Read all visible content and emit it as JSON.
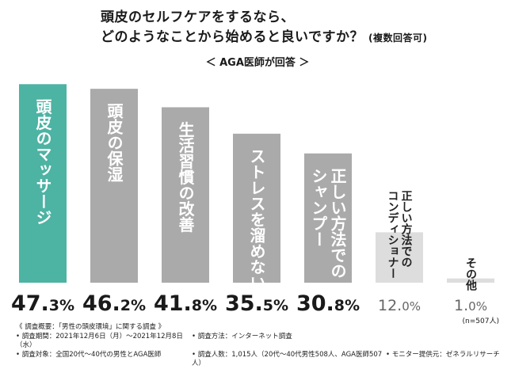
{
  "title": {
    "line1": "頭皮のセルフケアをするなら、",
    "line2": "どのようなことから始めると良いですか？",
    "note": "(複数回答可)"
  },
  "subtitle": "＜ AGA医師が回答 ＞",
  "chart_data": {
    "type": "bar",
    "categories": [
      "頭皮のマッサージ",
      "頭皮の保湿",
      "生活習慣の改善",
      "ストレスを溜めない",
      "正しい方法でのシャンプー",
      "正しい方法でのコンディショナー",
      "その他"
    ],
    "values": [
      47.3,
      46.2,
      41.8,
      35.5,
      30.8,
      12.0,
      1.0
    ],
    "value_labels": [
      {
        "int": "47.",
        "dec": "3",
        "unit": "%"
      },
      {
        "int": "46.",
        "dec": "2",
        "unit": "%"
      },
      {
        "int": "41.",
        "dec": "8",
        "unit": "%"
      },
      {
        "int": "35.",
        "dec": "5",
        "unit": "%"
      },
      {
        "int": "30.",
        "dec": "8",
        "unit": "%"
      },
      {
        "int": "12.",
        "dec": "0",
        "unit": "%"
      },
      {
        "int": "1.",
        "dec": "0",
        "unit": "%"
      }
    ],
    "bar_label_lines": [
      [
        "頭皮のマッサージ"
      ],
      [
        "頭皮の保湿"
      ],
      [
        "生活習慣の改善"
      ],
      [
        "ストレスを溜めない"
      ],
      [
        "正しい方法での",
        "シャンプー"
      ],
      [
        "正しい方法での",
        "コンディショナー"
      ],
      [
        "その他"
      ]
    ],
    "ylim": [
      0,
      50
    ],
    "colors": [
      "#4db3a3",
      "#aaaaaa",
      "#aaaaaa",
      "#aaaaaa",
      "#aaaaaa",
      "#dddddd",
      "#dddddd"
    ]
  },
  "sample_note": "(n=507人)",
  "footer": {
    "heading": "《 調査概要：「男性の頭皮環境」に関する調査 》",
    "period": "• 調査期間：2021年12月6日（月）〜2021年12月8日（水）",
    "method": "• 調査方法：インターネット調査",
    "target": "• 調査対象：全国20代〜40代の男性とAGA医師",
    "count": "• 調査人数：1,015人（20代〜40代男性508人、AGA医師507人）",
    "monitor": "• モニター提供元：ゼネラルリサーチ"
  }
}
